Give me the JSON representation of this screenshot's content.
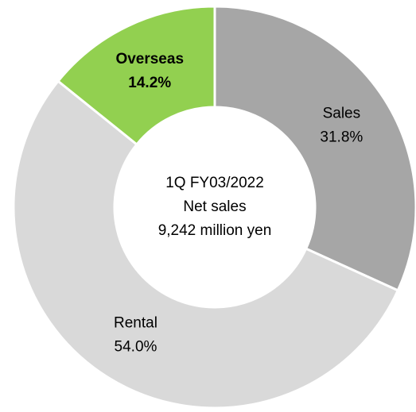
{
  "chart_data": {
    "type": "donut",
    "categories": [
      "Sales",
      "Rental",
      "Overseas"
    ],
    "values": [
      31.8,
      54.0,
      14.2
    ],
    "value_labels": [
      "31.8%",
      "54.0%",
      "14.2%"
    ],
    "colors": [
      "#a6a6a6",
      "#d9d9d9",
      "#92d050"
    ],
    "bold": [
      false,
      false,
      true
    ],
    "center_label": [
      "1Q FY03/2022",
      "Net sales",
      "9,242 million yen"
    ]
  }
}
